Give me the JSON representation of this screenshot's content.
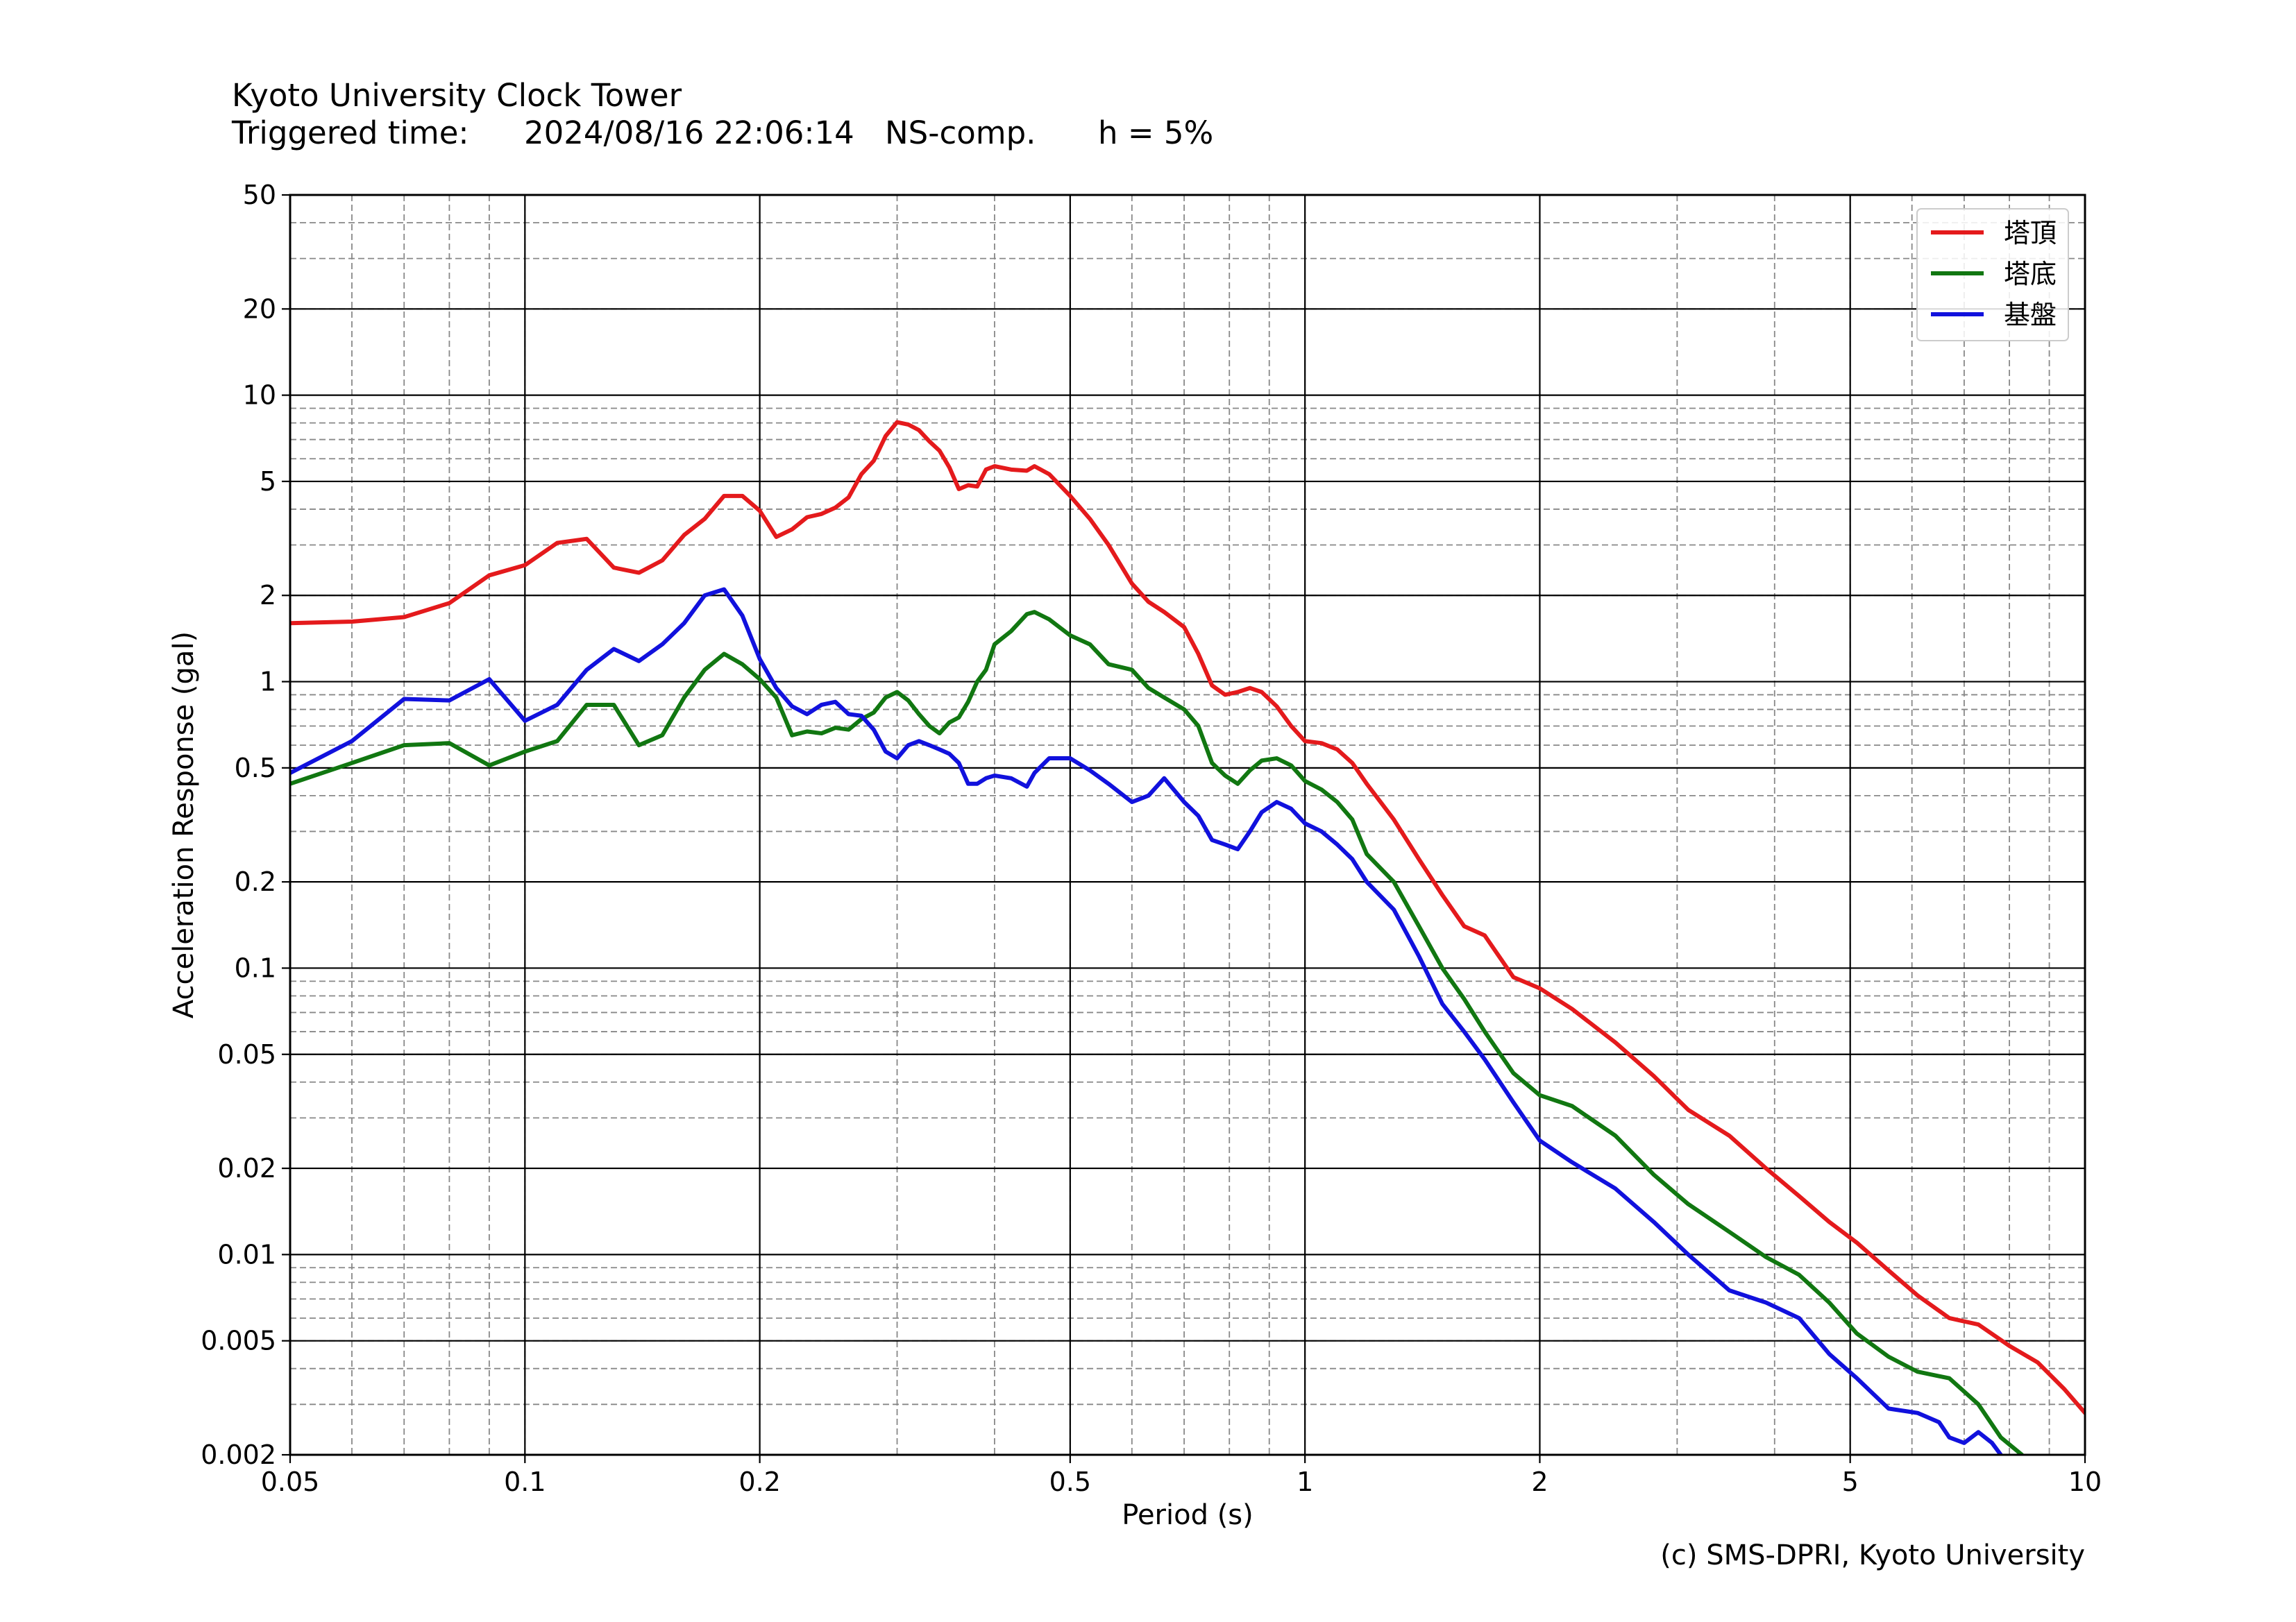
{
  "header": {
    "title": "Kyoto University Clock Tower",
    "triggered_label": "Triggered time:",
    "triggered_time": "2024/08/16 22:06:14",
    "component": "NS-comp.",
    "damping": "h = 5%"
  },
  "credit": "(c) SMS-DPRI, Kyoto University",
  "chart_data": {
    "type": "line",
    "xlabel": "Period (s)",
    "ylabel": "Acceleration Response (gal)",
    "xscale": "log",
    "yscale": "log",
    "xlim": [
      0.05,
      10
    ],
    "ylim": [
      0.002,
      50
    ],
    "grid": true,
    "legend_position": "top-right",
    "x_ticks": [
      {
        "value": 0.05,
        "label": "0.05"
      },
      {
        "value": 0.1,
        "label": "0.1"
      },
      {
        "value": 0.2,
        "label": "0.2"
      },
      {
        "value": 0.5,
        "label": "0.5"
      },
      {
        "value": 1,
        "label": "1"
      },
      {
        "value": 2,
        "label": "2"
      },
      {
        "value": 5,
        "label": "5"
      },
      {
        "value": 10,
        "label": "10"
      }
    ],
    "y_ticks": [
      {
        "value": 0.002,
        "label": "0.002"
      },
      {
        "value": 0.005,
        "label": "0.005"
      },
      {
        "value": 0.01,
        "label": "0.01"
      },
      {
        "value": 0.02,
        "label": "0.02"
      },
      {
        "value": 0.05,
        "label": "0.05"
      },
      {
        "value": 0.1,
        "label": "0.1"
      },
      {
        "value": 0.2,
        "label": "0.2"
      },
      {
        "value": 0.5,
        "label": "0.5"
      },
      {
        "value": 1,
        "label": "1"
      },
      {
        "value": 2,
        "label": "2"
      },
      {
        "value": 5,
        "label": "5"
      },
      {
        "value": 10,
        "label": "10"
      },
      {
        "value": 20,
        "label": "20"
      },
      {
        "value": 50,
        "label": "50"
      }
    ],
    "series": [
      {
        "name": "塔頂",
        "color": "#e41a1c",
        "points": [
          [
            0.05,
            1.6
          ],
          [
            0.06,
            1.62
          ],
          [
            0.07,
            1.68
          ],
          [
            0.08,
            1.88
          ],
          [
            0.09,
            2.35
          ],
          [
            0.1,
            2.55
          ],
          [
            0.11,
            3.05
          ],
          [
            0.12,
            3.15
          ],
          [
            0.13,
            2.5
          ],
          [
            0.14,
            2.4
          ],
          [
            0.15,
            2.65
          ],
          [
            0.16,
            3.25
          ],
          [
            0.17,
            3.7
          ],
          [
            0.18,
            4.45
          ],
          [
            0.19,
            4.45
          ],
          [
            0.2,
            3.95
          ],
          [
            0.21,
            3.2
          ],
          [
            0.22,
            3.4
          ],
          [
            0.23,
            3.75
          ],
          [
            0.24,
            3.85
          ],
          [
            0.25,
            4.05
          ],
          [
            0.26,
            4.4
          ],
          [
            0.27,
            5.3
          ],
          [
            0.28,
            5.9
          ],
          [
            0.29,
            7.2
          ],
          [
            0.3,
            8.05
          ],
          [
            0.31,
            7.9
          ],
          [
            0.32,
            7.55
          ],
          [
            0.33,
            6.9
          ],
          [
            0.34,
            6.4
          ],
          [
            0.35,
            5.6
          ],
          [
            0.36,
            4.7
          ],
          [
            0.37,
            4.85
          ],
          [
            0.38,
            4.8
          ],
          [
            0.39,
            5.5
          ],
          [
            0.4,
            5.65
          ],
          [
            0.42,
            5.5
          ],
          [
            0.44,
            5.45
          ],
          [
            0.45,
            5.65
          ],
          [
            0.47,
            5.3
          ],
          [
            0.5,
            4.45
          ],
          [
            0.53,
            3.7
          ],
          [
            0.56,
            3.0
          ],
          [
            0.6,
            2.2
          ],
          [
            0.63,
            1.9
          ],
          [
            0.66,
            1.75
          ],
          [
            0.7,
            1.55
          ],
          [
            0.73,
            1.25
          ],
          [
            0.76,
            0.97
          ],
          [
            0.79,
            0.9
          ],
          [
            0.82,
            0.92
          ],
          [
            0.85,
            0.95
          ],
          [
            0.88,
            0.92
          ],
          [
            0.92,
            0.82
          ],
          [
            0.96,
            0.7
          ],
          [
            1.0,
            0.62
          ],
          [
            1.05,
            0.61
          ],
          [
            1.1,
            0.58
          ],
          [
            1.15,
            0.52
          ],
          [
            1.2,
            0.44
          ],
          [
            1.3,
            0.33
          ],
          [
            1.4,
            0.24
          ],
          [
            1.5,
            0.18
          ],
          [
            1.6,
            0.14
          ],
          [
            1.7,
            0.13
          ],
          [
            1.85,
            0.093
          ],
          [
            2.0,
            0.085
          ],
          [
            2.2,
            0.072
          ],
          [
            2.5,
            0.055
          ],
          [
            2.8,
            0.042
          ],
          [
            3.1,
            0.032
          ],
          [
            3.5,
            0.026
          ],
          [
            3.9,
            0.02
          ],
          [
            4.3,
            0.016
          ],
          [
            4.7,
            0.013
          ],
          [
            5.1,
            0.011
          ],
          [
            5.6,
            0.0088
          ],
          [
            6.1,
            0.0072
          ],
          [
            6.7,
            0.006
          ],
          [
            7.3,
            0.0057
          ],
          [
            8.0,
            0.0048
          ],
          [
            8.7,
            0.0042
          ],
          [
            9.4,
            0.0034
          ],
          [
            10.0,
            0.0028
          ]
        ]
      },
      {
        "name": "塔底",
        "color": "#117711",
        "points": [
          [
            0.05,
            0.44
          ],
          [
            0.06,
            0.52
          ],
          [
            0.07,
            0.6
          ],
          [
            0.08,
            0.61
          ],
          [
            0.09,
            0.51
          ],
          [
            0.1,
            0.57
          ],
          [
            0.11,
            0.62
          ],
          [
            0.12,
            0.83
          ],
          [
            0.13,
            0.83
          ],
          [
            0.14,
            0.6
          ],
          [
            0.15,
            0.65
          ],
          [
            0.16,
            0.88
          ],
          [
            0.17,
            1.1
          ],
          [
            0.18,
            1.25
          ],
          [
            0.19,
            1.15
          ],
          [
            0.2,
            1.02
          ],
          [
            0.21,
            0.88
          ],
          [
            0.22,
            0.65
          ],
          [
            0.23,
            0.67
          ],
          [
            0.24,
            0.66
          ],
          [
            0.25,
            0.69
          ],
          [
            0.26,
            0.68
          ],
          [
            0.27,
            0.74
          ],
          [
            0.28,
            0.78
          ],
          [
            0.29,
            0.88
          ],
          [
            0.3,
            0.92
          ],
          [
            0.31,
            0.86
          ],
          [
            0.32,
            0.77
          ],
          [
            0.33,
            0.7
          ],
          [
            0.34,
            0.66
          ],
          [
            0.35,
            0.72
          ],
          [
            0.36,
            0.75
          ],
          [
            0.37,
            0.85
          ],
          [
            0.38,
            1.0
          ],
          [
            0.39,
            1.1
          ],
          [
            0.4,
            1.35
          ],
          [
            0.42,
            1.5
          ],
          [
            0.44,
            1.72
          ],
          [
            0.45,
            1.75
          ],
          [
            0.47,
            1.65
          ],
          [
            0.5,
            1.45
          ],
          [
            0.53,
            1.35
          ],
          [
            0.56,
            1.15
          ],
          [
            0.6,
            1.1
          ],
          [
            0.63,
            0.95
          ],
          [
            0.66,
            0.88
          ],
          [
            0.7,
            0.8
          ],
          [
            0.73,
            0.7
          ],
          [
            0.76,
            0.52
          ],
          [
            0.79,
            0.47
          ],
          [
            0.82,
            0.44
          ],
          [
            0.85,
            0.49
          ],
          [
            0.88,
            0.53
          ],
          [
            0.92,
            0.54
          ],
          [
            0.96,
            0.51
          ],
          [
            1.0,
            0.45
          ],
          [
            1.05,
            0.42
          ],
          [
            1.1,
            0.38
          ],
          [
            1.15,
            0.33
          ],
          [
            1.2,
            0.25
          ],
          [
            1.3,
            0.2
          ],
          [
            1.4,
            0.14
          ],
          [
            1.5,
            0.1
          ],
          [
            1.6,
            0.078
          ],
          [
            1.7,
            0.06
          ],
          [
            1.85,
            0.043
          ],
          [
            2.0,
            0.036
          ],
          [
            2.2,
            0.033
          ],
          [
            2.5,
            0.026
          ],
          [
            2.8,
            0.019
          ],
          [
            3.1,
            0.015
          ],
          [
            3.5,
            0.012
          ],
          [
            3.9,
            0.0098
          ],
          [
            4.3,
            0.0085
          ],
          [
            4.7,
            0.0068
          ],
          [
            5.1,
            0.0053
          ],
          [
            5.6,
            0.0044
          ],
          [
            6.1,
            0.0039
          ],
          [
            6.7,
            0.0037
          ],
          [
            7.3,
            0.003
          ],
          [
            7.8,
            0.0023
          ],
          [
            8.3,
            0.002
          ]
        ]
      },
      {
        "name": "基盤",
        "color": "#1111dd",
        "points": [
          [
            0.05,
            0.48
          ],
          [
            0.06,
            0.62
          ],
          [
            0.07,
            0.87
          ],
          [
            0.08,
            0.86
          ],
          [
            0.09,
            1.02
          ],
          [
            0.1,
            0.73
          ],
          [
            0.11,
            0.83
          ],
          [
            0.12,
            1.1
          ],
          [
            0.13,
            1.3
          ],
          [
            0.14,
            1.18
          ],
          [
            0.15,
            1.35
          ],
          [
            0.16,
            1.6
          ],
          [
            0.17,
            2.0
          ],
          [
            0.18,
            2.1
          ],
          [
            0.19,
            1.7
          ],
          [
            0.2,
            1.2
          ],
          [
            0.21,
            0.95
          ],
          [
            0.22,
            0.82
          ],
          [
            0.23,
            0.77
          ],
          [
            0.24,
            0.83
          ],
          [
            0.25,
            0.85
          ],
          [
            0.26,
            0.77
          ],
          [
            0.27,
            0.76
          ],
          [
            0.28,
            0.68
          ],
          [
            0.29,
            0.57
          ],
          [
            0.3,
            0.54
          ],
          [
            0.31,
            0.6
          ],
          [
            0.32,
            0.62
          ],
          [
            0.33,
            0.6
          ],
          [
            0.34,
            0.58
          ],
          [
            0.35,
            0.56
          ],
          [
            0.36,
            0.52
          ],
          [
            0.37,
            0.44
          ],
          [
            0.38,
            0.44
          ],
          [
            0.39,
            0.46
          ],
          [
            0.4,
            0.47
          ],
          [
            0.42,
            0.46
          ],
          [
            0.44,
            0.43
          ],
          [
            0.45,
            0.48
          ],
          [
            0.47,
            0.54
          ],
          [
            0.5,
            0.54
          ],
          [
            0.53,
            0.49
          ],
          [
            0.56,
            0.44
          ],
          [
            0.6,
            0.38
          ],
          [
            0.63,
            0.4
          ],
          [
            0.66,
            0.46
          ],
          [
            0.7,
            0.38
          ],
          [
            0.73,
            0.34
          ],
          [
            0.76,
            0.28
          ],
          [
            0.79,
            0.27
          ],
          [
            0.82,
            0.26
          ],
          [
            0.85,
            0.3
          ],
          [
            0.88,
            0.35
          ],
          [
            0.92,
            0.38
          ],
          [
            0.96,
            0.36
          ],
          [
            1.0,
            0.32
          ],
          [
            1.05,
            0.3
          ],
          [
            1.1,
            0.27
          ],
          [
            1.15,
            0.24
          ],
          [
            1.2,
            0.2
          ],
          [
            1.3,
            0.16
          ],
          [
            1.4,
            0.11
          ],
          [
            1.5,
            0.075
          ],
          [
            1.6,
            0.06
          ],
          [
            1.7,
            0.048
          ],
          [
            1.85,
            0.034
          ],
          [
            2.0,
            0.025
          ],
          [
            2.2,
            0.021
          ],
          [
            2.5,
            0.017
          ],
          [
            2.8,
            0.013
          ],
          [
            3.1,
            0.01
          ],
          [
            3.5,
            0.0075
          ],
          [
            3.9,
            0.0068
          ],
          [
            4.3,
            0.006
          ],
          [
            4.7,
            0.0045
          ],
          [
            5.1,
            0.0037
          ],
          [
            5.6,
            0.0029
          ],
          [
            6.1,
            0.0028
          ],
          [
            6.5,
            0.0026
          ],
          [
            6.7,
            0.0023
          ],
          [
            7.0,
            0.0022
          ],
          [
            7.3,
            0.0024
          ],
          [
            7.6,
            0.0022
          ],
          [
            7.8,
            0.002
          ]
        ]
      }
    ]
  }
}
